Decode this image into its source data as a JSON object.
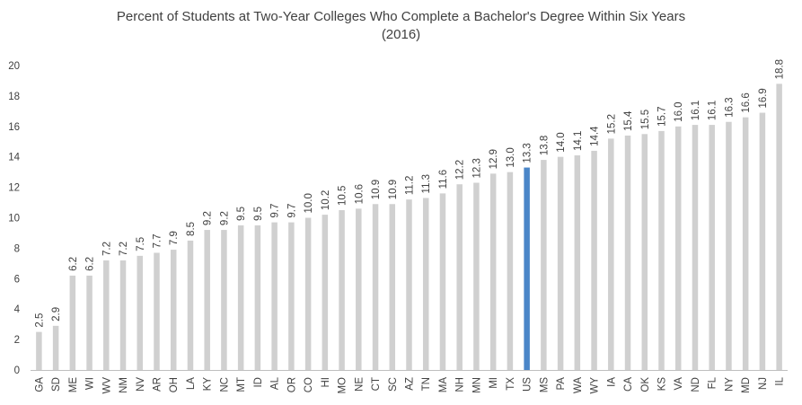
{
  "chart_data": {
    "type": "bar",
    "title": "Percent of Students at Two-Year Colleges Who Complete a Bachelor's Degree Within Six Years",
    "subtitle": "(2016)",
    "xlabel": "",
    "ylabel": "",
    "ylim": [
      0,
      20
    ],
    "yticks": [
      0,
      2,
      4,
      6,
      8,
      10,
      12,
      14,
      16,
      18,
      20
    ],
    "grid": false,
    "categories": [
      "GA",
      "SD",
      "ME",
      "WI",
      "WV",
      "NM",
      "NV",
      "AR",
      "OH",
      "LA",
      "KY",
      "NC",
      "MT",
      "ID",
      "AL",
      "OR",
      "CO",
      "HI",
      "MO",
      "NE",
      "CT",
      "SC",
      "AZ",
      "TN",
      "MA",
      "NH",
      "MN",
      "MI",
      "TX",
      "US",
      "MS",
      "PA",
      "WA",
      "WY",
      "IA",
      "CA",
      "OK",
      "KS",
      "VA",
      "ND",
      "FL",
      "NY",
      "MD",
      "NJ",
      "IL"
    ],
    "values": [
      2.5,
      2.9,
      6.2,
      6.2,
      7.2,
      7.2,
      7.5,
      7.7,
      7.9,
      8.5,
      9.2,
      9.2,
      9.5,
      9.5,
      9.7,
      9.7,
      10.0,
      10.2,
      10.5,
      10.6,
      10.9,
      10.9,
      11.2,
      11.3,
      11.6,
      12.2,
      12.3,
      12.9,
      13.0,
      13.3,
      13.8,
      14.0,
      14.1,
      14.4,
      15.2,
      15.4,
      15.5,
      15.7,
      16.0,
      16.1,
      16.1,
      16.3,
      16.6,
      16.9,
      18.8
    ],
    "data_labels": [
      "2.5",
      "2.9",
      "6.2",
      "6.2",
      "7.2",
      "7.2",
      "7.5",
      "7.7",
      "7.9",
      "8.5",
      "9.2",
      "9.2",
      "9.5",
      "9.5",
      "9.7",
      "9.7",
      "10.0",
      "10.2",
      "10.5",
      "10.6",
      "10.9",
      "10.9",
      "11.2",
      "11.3",
      "11.6",
      "12.2",
      "12.3",
      "12.9",
      "13.0",
      "13.3",
      "13.8",
      "14.0",
      "14.1",
      "14.4",
      "15.2",
      "15.4",
      "15.5",
      "15.7",
      "16.0",
      "16.1",
      "16.1",
      "16.3",
      "16.6",
      "16.9",
      "18.8"
    ],
    "highlight_category": "US",
    "colors": {
      "bar": "#d0d0d0",
      "highlight": "#4a86c8",
      "axis": "#bfbfbf",
      "text": "#404040"
    }
  }
}
